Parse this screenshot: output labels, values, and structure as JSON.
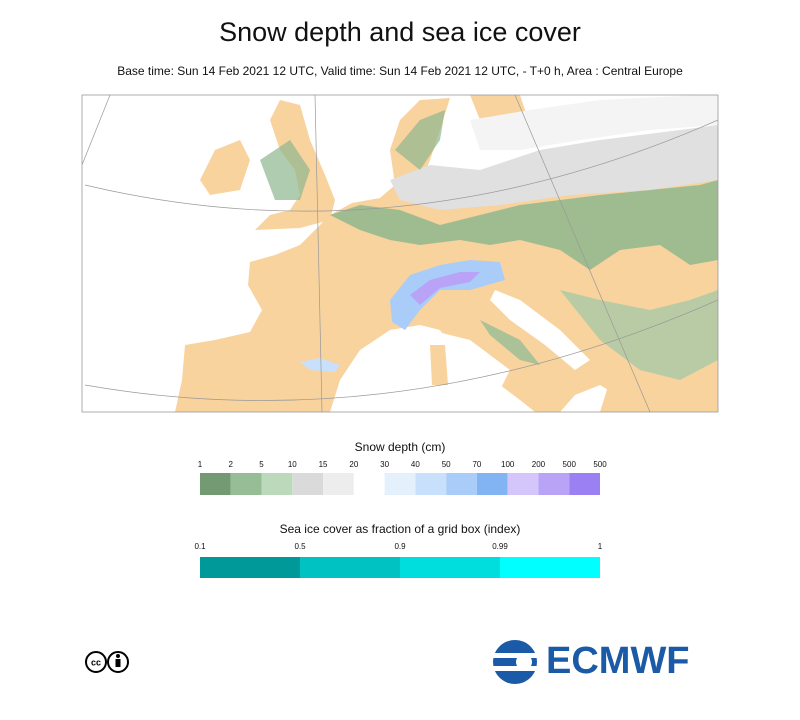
{
  "header": {
    "title": "Snow depth and sea ice cover",
    "subtitle": "Base time: Sun 14 Feb 2021 12 UTC, Valid time: Sun 14 Feb 2021 12 UTC, - T+0 h, Area : Central Europe"
  },
  "legends": [
    {
      "title": "Snow depth (cm)",
      "labels": [
        "1",
        "2",
        "5",
        "10",
        "15",
        "20",
        "30",
        "40",
        "50",
        "70",
        "100",
        "200",
        "500",
        "500"
      ],
      "colors": [
        "#739a73",
        "#97bd97",
        "#bcd9bc",
        "#dadada",
        "#ededed",
        "#ffffff",
        "#e4f1fd",
        "#c8e0fb",
        "#a9cdf8",
        "#82b4f3",
        "#d4c6fb",
        "#b8a3f7",
        "#9a80f2"
      ]
    },
    {
      "title": "Sea ice cover as fraction of a grid box (index)",
      "labels": [
        "0.1",
        "0.5",
        "0.9",
        "0.99",
        "1"
      ],
      "colors": [
        "#009999",
        "#00c2c2",
        "#00dddd",
        "#00ffff"
      ]
    }
  ],
  "logo": {
    "text": "ECMWF"
  }
}
